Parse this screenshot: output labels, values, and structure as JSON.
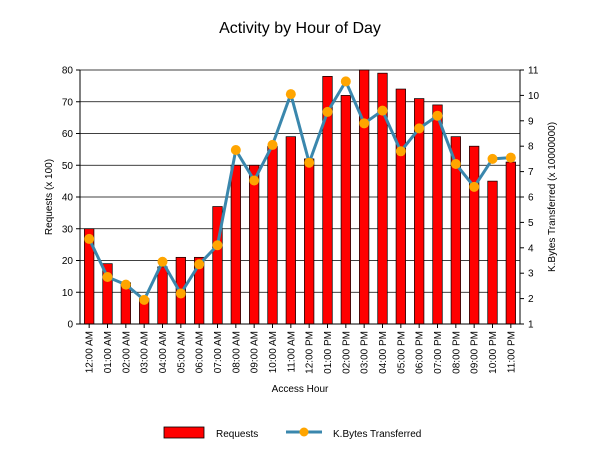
{
  "chart_data": {
    "type": "bar",
    "title": "Activity by Hour of Day",
    "xlabel": "Access Hour",
    "ylabel": "Requests (x 100)",
    "y2label": "K.Bytes Transferred (x 10000000)",
    "ylim": [
      0,
      80
    ],
    "y2lim": [
      1,
      11
    ],
    "yticks": [
      "0",
      "10",
      "20",
      "30",
      "40",
      "50",
      "60",
      "70",
      "80"
    ],
    "y2ticks": [
      "1",
      "2",
      "3",
      "4",
      "5",
      "6",
      "7",
      "8",
      "9",
      "10",
      "11"
    ],
    "grid": true,
    "legend_position": "bottom",
    "categories": [
      "12:00 AM",
      "01:00 AM",
      "02:00 AM",
      "03:00 AM",
      "04:00 AM",
      "05:00 AM",
      "06:00 AM",
      "07:00 AM",
      "08:00 AM",
      "09:00 AM",
      "10:00 AM",
      "11:00 AM",
      "12:00 PM",
      "01:00 PM",
      "02:00 PM",
      "03:00 PM",
      "04:00 PM",
      "05:00 PM",
      "06:00 PM",
      "07:00 PM",
      "08:00 PM",
      "09:00 PM",
      "10:00 PM",
      "11:00 PM"
    ],
    "series": [
      {
        "name": "Requests",
        "type": "bar",
        "axis": "left",
        "color": "#ff0000",
        "values": [
          30,
          19,
          13,
          8,
          18,
          21,
          21,
          37,
          50,
          50,
          56,
          59,
          52,
          78,
          72,
          80,
          79,
          74,
          71,
          69,
          59,
          56,
          45,
          51
        ]
      },
      {
        "name": "K.Bytes Transferred",
        "type": "line",
        "axis": "right",
        "color": "#3a87ad",
        "marker_color": "#ffa500",
        "values": [
          4.35,
          2.85,
          2.55,
          1.95,
          3.45,
          2.2,
          3.35,
          4.1,
          7.85,
          6.65,
          8.05,
          10.05,
          7.35,
          9.35,
          10.55,
          8.9,
          9.4,
          7.8,
          8.7,
          9.2,
          7.3,
          6.4,
          7.5,
          7.55
        ]
      }
    ]
  }
}
